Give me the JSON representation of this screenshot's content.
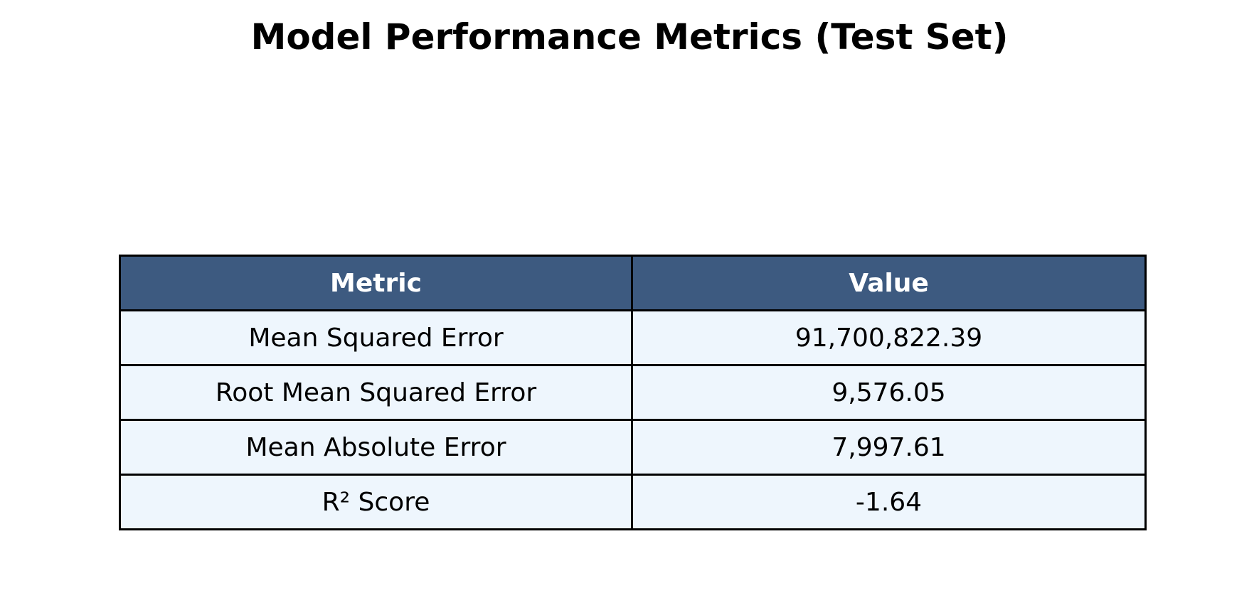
{
  "chart_data": {
    "type": "table",
    "title": "Model Performance Metrics (Test Set)",
    "columns": [
      "Metric",
      "Value"
    ],
    "rows": [
      [
        "Mean Squared Error",
        "91,700,822.39"
      ],
      [
        "Root Mean Squared Error",
        "9,576.05"
      ],
      [
        "Mean Absolute Error",
        "7,997.61"
      ],
      [
        "R² Score",
        "-1.64"
      ]
    ]
  },
  "colors": {
    "header_background": "#3d5a80",
    "header_text": "#ffffff",
    "cell_background": "#eef6fd",
    "border": "#000000",
    "text": "#000000"
  }
}
